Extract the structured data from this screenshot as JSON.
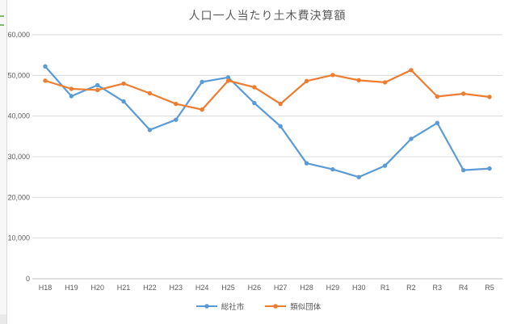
{
  "window": {
    "background": "#ffffff"
  },
  "chart_data": {
    "type": "line",
    "title": "人口一人当たり土木費決算額",
    "categories": [
      "H18",
      "H19",
      "H20",
      "H21",
      "H22",
      "H23",
      "H24",
      "H25",
      "H26",
      "H27",
      "H28",
      "H29",
      "H30",
      "R1",
      "R2",
      "R3",
      "R4",
      "R5"
    ],
    "series": [
      {
        "name": "総社市",
        "color": "#5B9BD5",
        "values": [
          52200,
          44900,
          47600,
          43600,
          36600,
          39100,
          48400,
          49500,
          43200,
          37500,
          28400,
          26900,
          25000,
          27800,
          34400,
          38300,
          26700,
          27100
        ]
      },
      {
        "name": "類似団体",
        "color": "#ED7D31",
        "values": [
          48700,
          46700,
          46400,
          48000,
          45600,
          43000,
          41600,
          48700,
          47100,
          43000,
          48600,
          50100,
          48800,
          48300,
          51300,
          44800,
          45500,
          44700
        ]
      }
    ],
    "xlabel": "",
    "ylabel": "",
    "ylim": [
      0,
      60000
    ],
    "ytick_interval": 10000,
    "ytick_labels": [
      "0",
      "10,000",
      "20,000",
      "30,000",
      "40,000",
      "50,000",
      "60,000"
    ],
    "grid": true,
    "legend_position": "bottom",
    "marker": "circle",
    "text_color": "#595959",
    "gridline_color": "#D9D9D9",
    "axis_line_color": "#BFBFBF"
  }
}
